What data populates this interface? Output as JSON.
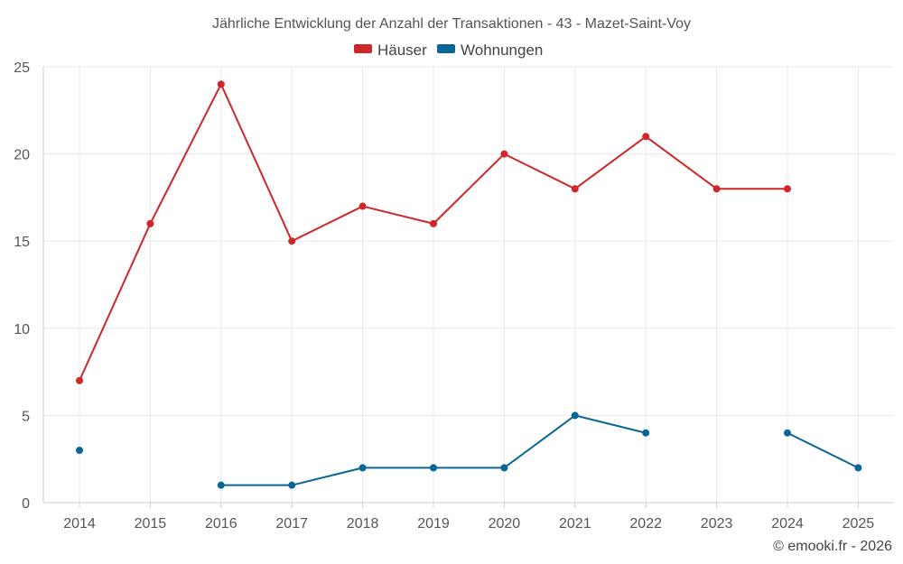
{
  "chart_data": {
    "type": "line",
    "title": "Jährliche Entwicklung der Anzahl der Transaktionen - 43 - Mazet-Saint-Voy",
    "categories": [
      "2014",
      "2015",
      "2016",
      "2017",
      "2018",
      "2019",
      "2020",
      "2021",
      "2022",
      "2023",
      "2024",
      "2025"
    ],
    "ylim": [
      0,
      25
    ],
    "yticks": [
      0,
      5,
      10,
      15,
      20,
      25
    ],
    "ytick_labels": [
      "0",
      "5",
      "10",
      "15",
      "20",
      "25"
    ],
    "grid": true,
    "legend_position": "top-center",
    "series": [
      {
        "name": "Häuser",
        "color": "#d0262a",
        "values": [
          7,
          16,
          24,
          15,
          17,
          16,
          20,
          18,
          21,
          18,
          18,
          null
        ]
      },
      {
        "name": "Wohnungen",
        "color": "#0a6699",
        "values": [
          3,
          null,
          1,
          1,
          2,
          2,
          2,
          5,
          4,
          null,
          4,
          2
        ]
      }
    ]
  },
  "credit": "© emooki.fr - 2026"
}
